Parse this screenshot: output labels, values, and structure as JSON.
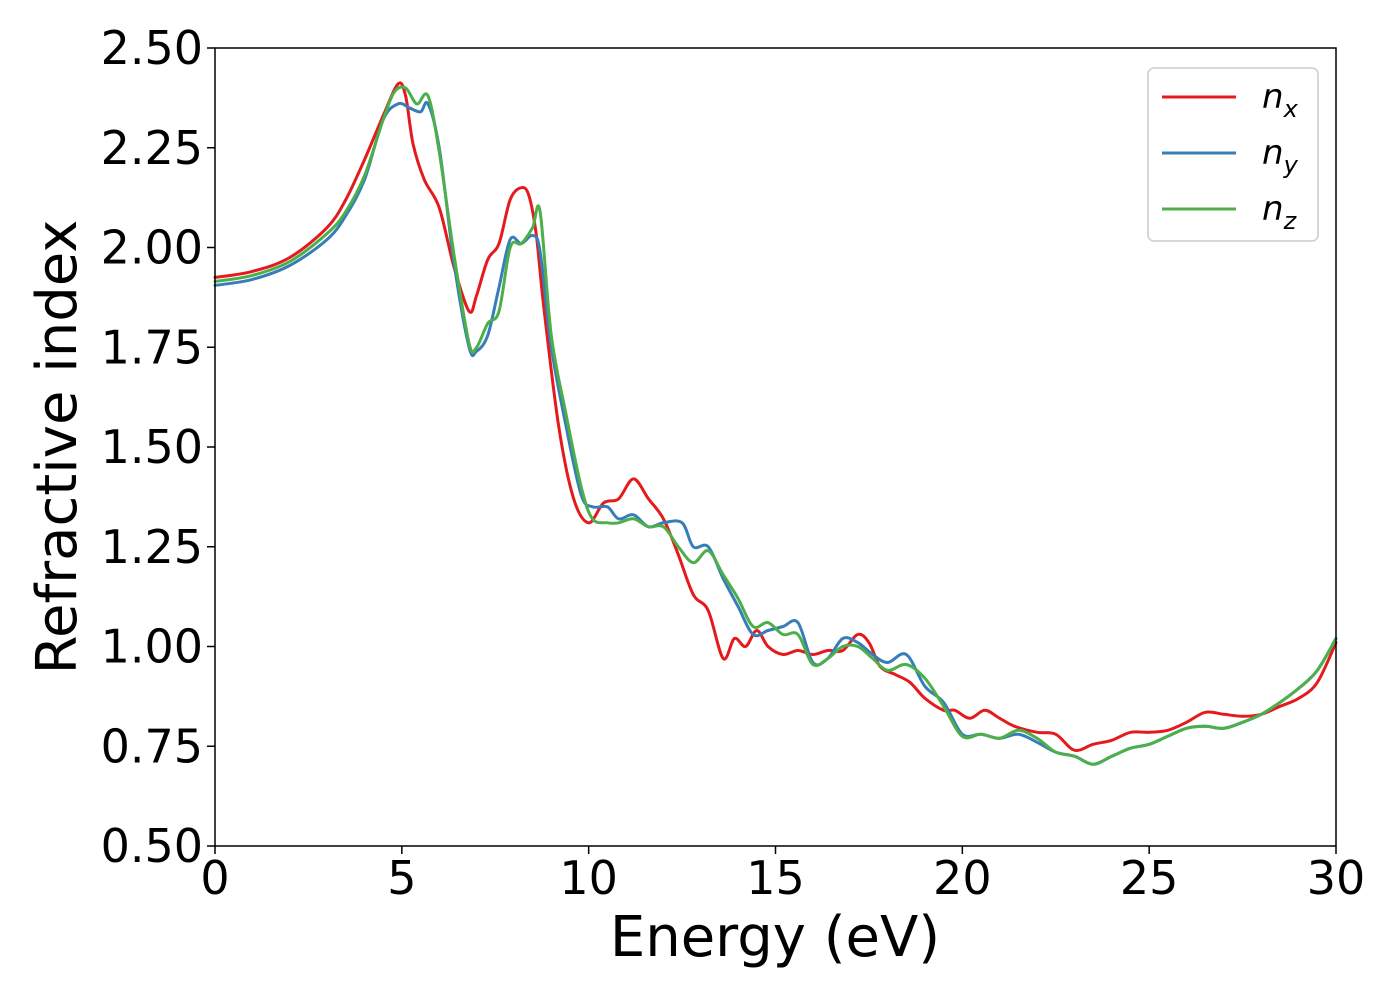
{
  "chart_data": {
    "type": "line",
    "xlabel": "Energy (eV)",
    "ylabel": "Refractive index",
    "xlim": [
      0,
      30
    ],
    "ylim": [
      0.5,
      2.5
    ],
    "xticks": [
      {
        "value": 0,
        "label": "0"
      },
      {
        "value": 5,
        "label": "5"
      },
      {
        "value": 10,
        "label": "10"
      },
      {
        "value": 15,
        "label": "15"
      },
      {
        "value": 20,
        "label": "20"
      },
      {
        "value": 25,
        "label": "25"
      },
      {
        "value": 30,
        "label": "30"
      }
    ],
    "yticks": [
      {
        "value": 0.5,
        "label": "0.50"
      },
      {
        "value": 0.75,
        "label": "0.75"
      },
      {
        "value": 1.0,
        "label": "1.00"
      },
      {
        "value": 1.25,
        "label": "1.25"
      },
      {
        "value": 1.5,
        "label": "1.50"
      },
      {
        "value": 1.75,
        "label": "1.75"
      },
      {
        "value": 2.0,
        "label": "2.00"
      },
      {
        "value": 2.25,
        "label": "2.25"
      },
      {
        "value": 2.5,
        "label": "2.50"
      }
    ],
    "grid": false,
    "legend_position": "top-right",
    "series": [
      {
        "name": "n_x",
        "label_base": "n",
        "label_sub": "x",
        "color": "#e41a1c",
        "x": [
          0,
          1,
          2,
          3,
          3.5,
          4,
          4.5,
          4.9,
          5.1,
          5.3,
          5.6,
          6.0,
          6.4,
          6.8,
          7.0,
          7.3,
          7.6,
          7.9,
          8.2,
          8.4,
          8.6,
          8.8,
          9.2,
          9.6,
          10.0,
          10.4,
          10.8,
          11.2,
          11.6,
          12.0,
          12.4,
          12.8,
          13.2,
          13.6,
          13.9,
          14.2,
          14.5,
          14.8,
          15.2,
          15.6,
          16.0,
          16.4,
          16.8,
          17.2,
          17.5,
          17.8,
          18.2,
          18.6,
          19.0,
          19.5,
          19.8,
          20.2,
          20.6,
          21.0,
          21.4,
          22.0,
          22.5,
          23.0,
          23.5,
          24.0,
          24.5,
          25.0,
          25.5,
          26.0,
          26.5,
          27.0,
          27.5,
          28.0,
          28.5,
          29.0,
          29.5,
          30
        ],
        "y": [
          1.925,
          1.94,
          1.975,
          2.05,
          2.12,
          2.22,
          2.33,
          2.41,
          2.38,
          2.26,
          2.17,
          2.1,
          1.95,
          1.84,
          1.88,
          1.97,
          2.01,
          2.12,
          2.15,
          2.13,
          2.03,
          1.85,
          1.55,
          1.37,
          1.31,
          1.36,
          1.37,
          1.42,
          1.37,
          1.32,
          1.23,
          1.13,
          1.09,
          0.97,
          1.02,
          1.0,
          1.04,
          1.0,
          0.98,
          0.99,
          0.98,
          0.99,
          0.99,
          1.03,
          1.01,
          0.95,
          0.93,
          0.91,
          0.87,
          0.84,
          0.84,
          0.82,
          0.84,
          0.82,
          0.8,
          0.785,
          0.78,
          0.74,
          0.755,
          0.765,
          0.785,
          0.785,
          0.79,
          0.81,
          0.835,
          0.83,
          0.825,
          0.83,
          0.85,
          0.87,
          0.91,
          1.01
        ]
      },
      {
        "name": "n_y",
        "label_base": "n",
        "label_sub": "y",
        "color": "#377eb8",
        "x": [
          0,
          1,
          2,
          3,
          3.5,
          4,
          4.5,
          4.9,
          5.2,
          5.5,
          5.7,
          6.0,
          6.4,
          6.8,
          7.0,
          7.3,
          7.6,
          7.9,
          8.2,
          8.5,
          8.7,
          9.0,
          9.4,
          9.8,
          10.1,
          10.5,
          10.8,
          11.2,
          11.6,
          12.0,
          12.5,
          12.8,
          13.2,
          13.6,
          14.0,
          14.4,
          14.8,
          15.2,
          15.6,
          16.0,
          16.4,
          16.8,
          17.2,
          17.6,
          18.0,
          18.5,
          19.0,
          19.5,
          20.0,
          20.5,
          21.0,
          21.5,
          22.0,
          22.5,
          23.0,
          23.5,
          24.0,
          24.5,
          25.0,
          25.5,
          26.0,
          26.5,
          27.0,
          27.5,
          28.0,
          28.5,
          29.0,
          29.5,
          30
        ],
        "y": [
          1.905,
          1.92,
          1.955,
          2.02,
          2.08,
          2.17,
          2.32,
          2.36,
          2.35,
          2.34,
          2.36,
          2.25,
          1.96,
          1.75,
          1.74,
          1.78,
          1.9,
          2.02,
          2.01,
          2.03,
          1.99,
          1.75,
          1.55,
          1.38,
          1.35,
          1.35,
          1.32,
          1.33,
          1.3,
          1.31,
          1.31,
          1.25,
          1.25,
          1.17,
          1.1,
          1.03,
          1.04,
          1.05,
          1.06,
          0.96,
          0.97,
          1.02,
          1.01,
          0.98,
          0.96,
          0.98,
          0.9,
          0.86,
          0.78,
          0.78,
          0.77,
          0.78,
          0.76,
          0.735,
          0.725,
          0.705,
          0.725,
          0.745,
          0.755,
          0.775,
          0.795,
          0.8,
          0.795,
          0.81,
          0.83,
          0.86,
          0.895,
          0.94,
          1.02
        ]
      },
      {
        "name": "n_z",
        "label_base": "n",
        "label_sub": "z",
        "color": "#4daf4a",
        "x": [
          0,
          1,
          2,
          3,
          3.5,
          4,
          4.5,
          4.8,
          5.1,
          5.4,
          5.7,
          6.0,
          6.4,
          6.8,
          7.0,
          7.3,
          7.6,
          7.9,
          8.2,
          8.5,
          8.7,
          9.0,
          9.4,
          9.8,
          10.1,
          10.5,
          10.8,
          11.2,
          11.6,
          12.0,
          12.4,
          12.8,
          13.2,
          13.6,
          14.0,
          14.4,
          14.8,
          15.2,
          15.6,
          16.0,
          16.4,
          16.8,
          17.2,
          17.6,
          18.0,
          18.5,
          19.0,
          19.5,
          20.0,
          20.5,
          21.0,
          21.5,
          22.0,
          22.5,
          23.0,
          23.5,
          24.0,
          24.5,
          25.0,
          25.5,
          26.0,
          26.5,
          27.0,
          27.5,
          28.0,
          28.5,
          29.0,
          29.5,
          30
        ],
        "y": [
          1.915,
          1.93,
          1.965,
          2.035,
          2.09,
          2.18,
          2.32,
          2.39,
          2.4,
          2.36,
          2.38,
          2.24,
          1.98,
          1.76,
          1.75,
          1.81,
          1.84,
          2.0,
          2.01,
          2.05,
          2.09,
          1.78,
          1.58,
          1.4,
          1.32,
          1.31,
          1.31,
          1.32,
          1.3,
          1.3,
          1.25,
          1.21,
          1.24,
          1.18,
          1.12,
          1.05,
          1.06,
          1.03,
          1.03,
          0.955,
          0.97,
          1.0,
          1.0,
          0.97,
          0.94,
          0.955,
          0.92,
          0.85,
          0.775,
          0.78,
          0.77,
          0.79,
          0.77,
          0.735,
          0.725,
          0.705,
          0.725,
          0.745,
          0.755,
          0.775,
          0.795,
          0.8,
          0.795,
          0.81,
          0.83,
          0.86,
          0.895,
          0.94,
          1.02
        ]
      }
    ]
  }
}
